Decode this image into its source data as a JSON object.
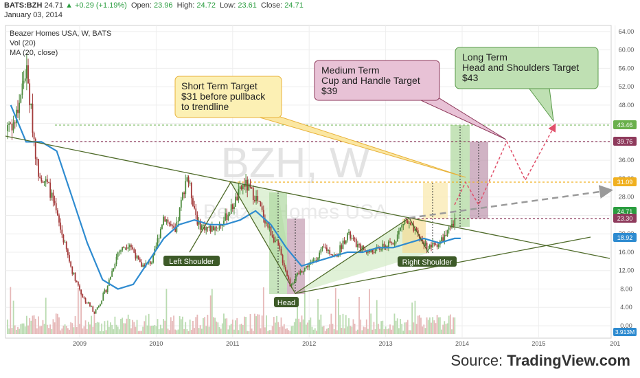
{
  "header": {
    "symbol": "BATS:BZH",
    "price": "24.71",
    "change": "▲ +0.29 (+1.19%)",
    "open_label": "Open:",
    "open": "23.96",
    "high_label": "High:",
    "high": "24.72",
    "low_label": "Low:",
    "low": "23.61",
    "close_label": "Close:",
    "close": "24.71",
    "date": "January 03, 2014"
  },
  "legend": {
    "title": "Beazer Homes USA, W, BATS",
    "vol": "Vol (20)",
    "ma": "MA (20, close)"
  },
  "watermark": {
    "main": "BZH, W",
    "sub": "Beazer Homes USA"
  },
  "footer": {
    "prefix": "Source: ",
    "brand": "TradingView.com"
  },
  "colors": {
    "up": "#2a9d3f",
    "candle_up": "#4c8a3c",
    "candle_down": "#a33a3a",
    "ma": "#2e8bd0",
    "trendline": "#556b2f",
    "short_box": "#fcf0b4",
    "short_border": "#e8b23a",
    "medium_box": "#e8c2d6",
    "medium_border": "#8e3a5c",
    "long_box": "#bfe0b3",
    "long_border": "#5a9a4a"
  },
  "chart_data": {
    "type": "candlestick",
    "title": "Beazer Homes USA, W, BATS",
    "xlabel": "",
    "ylabel": "",
    "x_ticks": [
      "2009",
      "2010",
      "2011",
      "2012",
      "2013",
      "2014",
      "2015",
      "201"
    ],
    "y_ticks": [
      "64.00",
      "60.00",
      "56.00",
      "52.00",
      "48.00",
      "44.00",
      "40.00",
      "36.00",
      "32.00",
      "28.00",
      "24.00",
      "20.00",
      "16.00",
      "12.00",
      "8.00",
      "4.00",
      "0.00"
    ],
    "ylim": [
      -2,
      66
    ],
    "series": [
      {
        "name": "BATS:BZH",
        "x": [
          2008.15,
          2008.3,
          2008.45,
          2008.6,
          2008.75,
          2008.9,
          2009.05,
          2009.2,
          2009.35,
          2009.5,
          2009.65,
          2009.8,
          2009.95,
          2010.1,
          2010.25,
          2010.4,
          2010.55,
          2010.7,
          2010.85,
          2011.0,
          2011.15,
          2011.3,
          2011.45,
          2011.6,
          2011.75,
          2011.9,
          2012.05,
          2012.2,
          2012.35,
          2012.5,
          2012.65,
          2012.8,
          2012.95,
          2013.1,
          2013.25,
          2013.4,
          2013.55,
          2013.7,
          2013.85,
          2013.98
        ],
        "values": [
          44,
          56,
          34,
          30,
          21,
          12,
          6,
          3,
          8,
          16,
          18,
          13,
          14,
          24,
          20,
          33,
          22,
          21,
          22,
          26,
          31,
          28,
          22,
          17,
          9,
          12,
          14,
          17,
          15,
          20,
          17,
          16,
          17,
          18,
          23,
          20,
          17,
          18,
          21,
          24.71
        ]
      },
      {
        "name": "MA (20, close)",
        "x": [
          2008.1,
          2008.3,
          2008.5,
          2008.7,
          2008.9,
          2009.1,
          2009.3,
          2009.5,
          2009.7,
          2009.9,
          2010.1,
          2010.3,
          2010.5,
          2010.7,
          2010.9,
          2011.1,
          2011.3,
          2011.5,
          2011.7,
          2011.9,
          2012.1,
          2012.3,
          2012.5,
          2012.7,
          2012.9,
          2013.1,
          2013.3,
          2013.5,
          2013.7,
          2013.9,
          2013.98
        ],
        "values": [
          48,
          40,
          40,
          38,
          28,
          18,
          10,
          8,
          9,
          14,
          19,
          22,
          23,
          22,
          22,
          23,
          25,
          22,
          17,
          13,
          14,
          15,
          16,
          16,
          17,
          17,
          18,
          19,
          18,
          19,
          19
        ]
      }
    ],
    "volume_label": "3.913M",
    "price_labels": [
      "43.46",
      "39.76",
      "31.09",
      "24.71",
      "23.30",
      "18.92"
    ],
    "pattern_labels": [
      "Left Shoulder",
      "Head",
      "Right Shoulder"
    ],
    "annotations": [
      {
        "label": "Short Term Target",
        "lines": [
          "Short Term Target",
          "$31 before pullback",
          "to trendline"
        ]
      },
      {
        "label": "Medium Term",
        "lines": [
          "Medium Term",
          "Cup and Handle Target",
          "$39"
        ]
      },
      {
        "label": "Long Term",
        "lines": [
          "Long Term",
          "Head and Shoulders Target",
          "$43"
        ]
      }
    ],
    "grid": true,
    "legend_position": "top-left"
  }
}
